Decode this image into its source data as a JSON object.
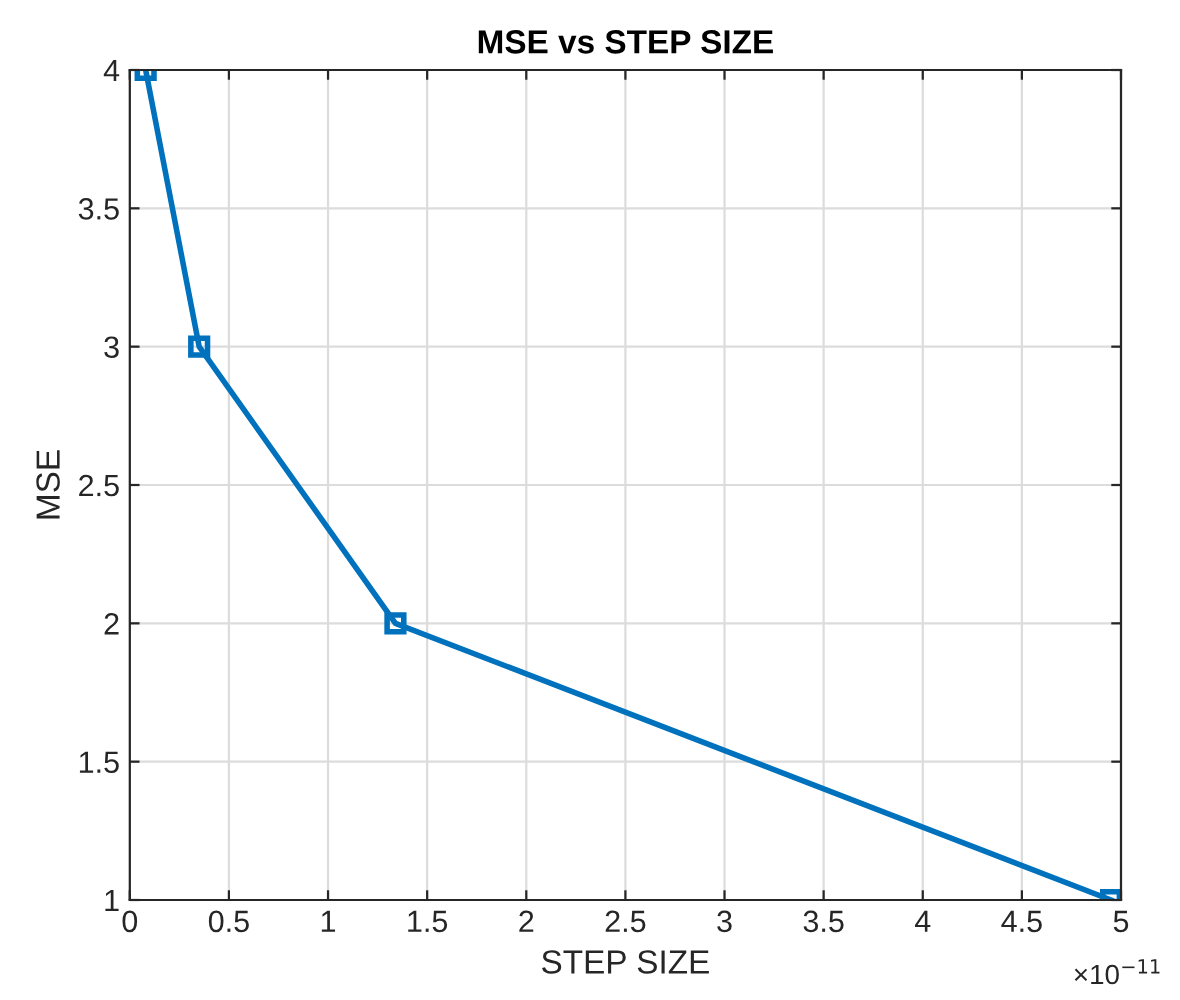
{
  "chart_data": {
    "type": "line",
    "title": "MSE vs STEP SIZE",
    "xlabel": "STEP SIZE",
    "ylabel": "MSE",
    "x": [
      0.08,
      0.35,
      1.34,
      4.95
    ],
    "series": [
      {
        "color": "#0072bd",
        "values": [
          4,
          3,
          2,
          1
        ]
      }
    ],
    "xlim": [
      0,
      5
    ],
    "xticks": [
      0,
      0.5,
      1,
      1.5,
      2,
      2.5,
      3,
      3.5,
      4,
      4.5,
      5
    ],
    "ylim": [
      1,
      4
    ],
    "yticks": [
      1,
      1.5,
      2,
      2.5,
      3,
      3.5,
      4
    ],
    "annotations": [
      "×10$^{−11}$"
    ],
    "grid": true,
    "marker": "square",
    "line_style": "solid"
  }
}
